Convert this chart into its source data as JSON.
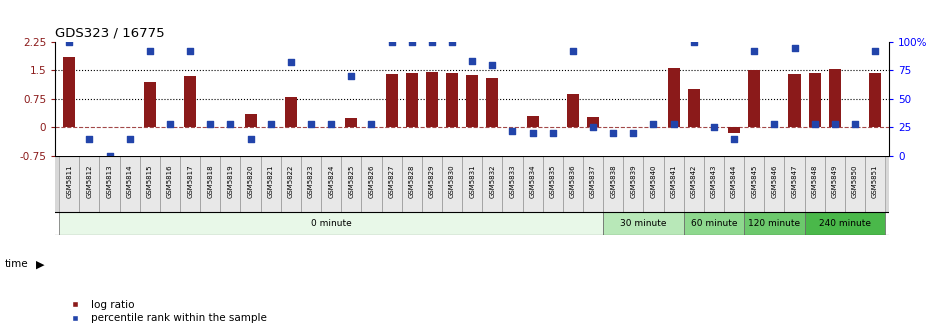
{
  "title": "GDS323 / 16775",
  "samples": [
    "GSM5811",
    "GSM5812",
    "GSM5813",
    "GSM5814",
    "GSM5815",
    "GSM5816",
    "GSM5817",
    "GSM5818",
    "GSM5819",
    "GSM5820",
    "GSM5821",
    "GSM5822",
    "GSM5823",
    "GSM5824",
    "GSM5825",
    "GSM5826",
    "GSM5827",
    "GSM5828",
    "GSM5829",
    "GSM5830",
    "GSM5831",
    "GSM5832",
    "GSM5833",
    "GSM5834",
    "GSM5835",
    "GSM5836",
    "GSM5837",
    "GSM5838",
    "GSM5839",
    "GSM5840",
    "GSM5841",
    "GSM5842",
    "GSM5843",
    "GSM5844",
    "GSM5845",
    "GSM5846",
    "GSM5847",
    "GSM5848",
    "GSM5849",
    "GSM5850",
    "GSM5851"
  ],
  "log_ratio": [
    1.85,
    0.0,
    0.0,
    0.0,
    1.2,
    0.0,
    1.35,
    0.0,
    0.0,
    0.35,
    0.0,
    0.8,
    0.0,
    0.0,
    0.25,
    0.0,
    1.4,
    1.42,
    1.45,
    1.42,
    1.38,
    1.3,
    0.0,
    0.3,
    0.0,
    0.87,
    0.27,
    0.0,
    0.0,
    0.0,
    1.57,
    1.0,
    0.0,
    -0.15,
    1.5,
    0.0,
    1.4,
    1.42,
    1.55,
    0.0,
    1.43
  ],
  "percentile_rank": [
    100,
    15,
    0,
    15,
    92,
    28,
    92,
    28,
    28,
    15,
    28,
    82,
    28,
    28,
    70,
    28,
    100,
    100,
    100,
    100,
    83,
    80,
    22,
    20,
    20,
    92,
    25,
    20,
    20,
    28,
    28,
    100,
    25,
    15,
    92,
    28,
    95,
    28,
    28,
    28,
    92
  ],
  "time_groups": [
    {
      "label": "0 minute",
      "start": 0,
      "end": 27,
      "color": "#e8f8e8"
    },
    {
      "label": "30 minute",
      "start": 27,
      "end": 31,
      "color": "#b8e8b8"
    },
    {
      "label": "60 minute",
      "start": 31,
      "end": 34,
      "color": "#8ed88e"
    },
    {
      "label": "120 minute",
      "start": 34,
      "end": 37,
      "color": "#6cc86c"
    },
    {
      "label": "240 minute",
      "start": 37,
      "end": 41,
      "color": "#4ab84a"
    }
  ],
  "bar_color": "#8B1A1A",
  "dot_color": "#2244AA",
  "ylim_left": [
    -0.75,
    2.25
  ],
  "ylim_right": [
    0,
    100
  ],
  "yticks_left": [
    -0.75,
    0,
    0.75,
    1.5,
    2.25
  ],
  "yticks_right": [
    0,
    25,
    50,
    75,
    100
  ],
  "hlines": [
    0.75,
    1.5
  ],
  "legend_labels": [
    "log ratio",
    "percentile rank within the sample"
  ],
  "bg_label_color": "#cccccc"
}
